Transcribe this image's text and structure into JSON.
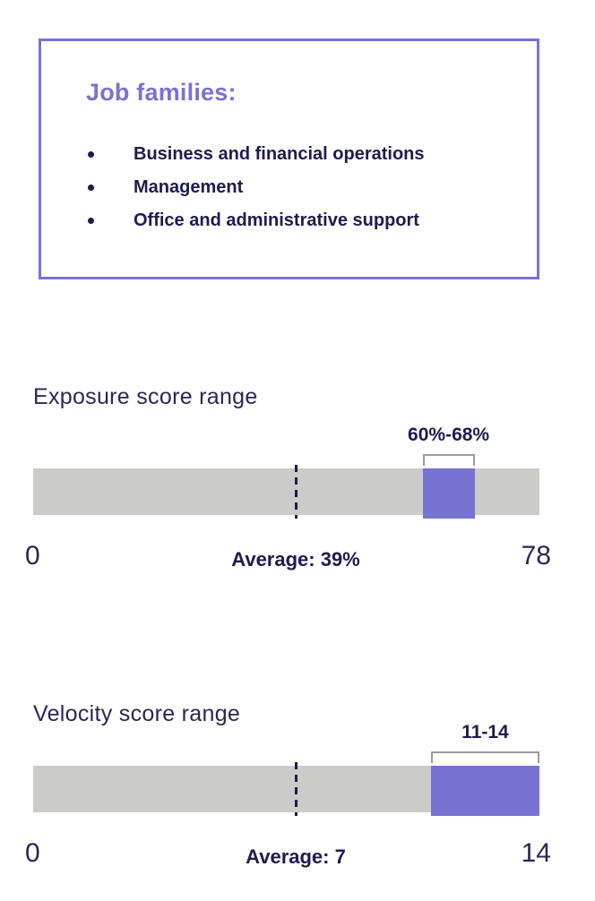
{
  "job_families": {
    "heading": "Job families:",
    "items": [
      "Business and financial operations",
      "Management",
      "Office and administrative support"
    ]
  },
  "chart_data": [
    {
      "type": "bar",
      "variant": "range-highlight-bar",
      "title": "Exposure score range",
      "xlim": [
        0,
        78
      ],
      "highlight_range": [
        60,
        68
      ],
      "highlight_label": "60%-68%",
      "average": 39,
      "average_label": "Average: 39%",
      "tick_labels": [
        "0",
        "78"
      ],
      "grid": false,
      "legend": false
    },
    {
      "type": "bar",
      "variant": "range-highlight-bar",
      "title": "Velocity score range",
      "xlim": [
        0,
        14
      ],
      "highlight_range": [
        11,
        14
      ],
      "highlight_label": "11-14",
      "average": 7,
      "average_label": "Average: 7",
      "tick_labels": [
        "0",
        "14"
      ],
      "grid": false,
      "legend": false
    }
  ],
  "colors": {
    "accent_purple": "#7673d2",
    "border_purple": "#7a72d4",
    "heading_purple": "#7b71d6",
    "navy_text": "#1e1b4e",
    "title_navy": "#2b2754",
    "bar_gray": "#cbcbc9",
    "bracket_gray": "#9b9b9b"
  }
}
